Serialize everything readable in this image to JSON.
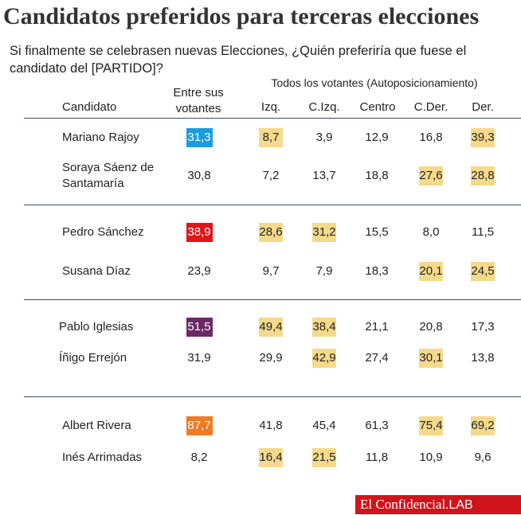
{
  "title": "Candidatos preferidos para terceras elecciones",
  "subtitle": "Si finalmente se celebrasen nuevas Elecciones, ¿Quién preferiría que fuese el candidato del [PARTIDO]?",
  "footer": {
    "brand": "El Confidencial.",
    "lab": "LAB"
  },
  "colors": {
    "highlight": "#f5d98b",
    "pp": "#1a9de0",
    "psoe": "#e0141a",
    "podemos": "#6b2a65",
    "cs": "#f07b22",
    "separator": "#3a4b5e"
  },
  "chart_data": {
    "type": "table",
    "group_header": "Todos los votantes (Autoposicionamiento)",
    "columns": [
      "Candidato",
      "Entre sus votantes",
      "Izq.",
      "C.Izq.",
      "Centro",
      "C.Der.",
      "Der."
    ],
    "rows": [
      {
        "candidate": "Mariano Rajoy",
        "party_color": "#1a9de0",
        "values": [
          31.3,
          8.7,
          3.9,
          12.9,
          16.8,
          39.3
        ],
        "display": [
          "31,3",
          "8,7",
          "3,9",
          "12,9",
          "16,8",
          "39,3"
        ],
        "highlighted": [
          false,
          true,
          false,
          false,
          false,
          true
        ]
      },
      {
        "candidate": "Soraya Sáenz de Santamaría",
        "party_color": "#1a9de0",
        "values": [
          30.8,
          7.2,
          13.7,
          18.8,
          27.6,
          28.8
        ],
        "display": [
          "30,8",
          "7,2",
          "13,7",
          "18,8",
          "27,6",
          "28,8"
        ],
        "highlighted": [
          false,
          false,
          false,
          false,
          true,
          true
        ]
      },
      {
        "candidate": "Pedro Sánchez",
        "party_color": "#e0141a",
        "values": [
          38.9,
          28.6,
          31.2,
          15.5,
          8.0,
          11.5
        ],
        "display": [
          "38,9",
          "28,6",
          "31,2",
          "15,5",
          "8,0",
          "11,5"
        ],
        "highlighted": [
          false,
          true,
          true,
          false,
          false,
          false
        ]
      },
      {
        "candidate": "Susana Díaz",
        "party_color": "#e0141a",
        "values": [
          23.9,
          9.7,
          7.9,
          18.3,
          20.1,
          24.5
        ],
        "display": [
          "23,9",
          "9,7",
          "7,9",
          "18,3",
          "20,1",
          "24,5"
        ],
        "highlighted": [
          false,
          false,
          false,
          false,
          true,
          true
        ]
      },
      {
        "candidate": "Pablo Iglesias",
        "party_color": "#6b2a65",
        "values": [
          51.5,
          49.4,
          38.4,
          21.1,
          20.8,
          17.3
        ],
        "display": [
          "51,5",
          "49,4",
          "38,4",
          "21,1",
          "20,8",
          "17,3"
        ],
        "highlighted": [
          false,
          true,
          true,
          false,
          false,
          false
        ]
      },
      {
        "candidate": "Íñigo Errejón",
        "party_color": "#6b2a65",
        "values": [
          31.9,
          29.9,
          42.9,
          27.4,
          30.1,
          13.8
        ],
        "display": [
          "31,9",
          "29,9",
          "42,9",
          "27,4",
          "30,1",
          "13,8"
        ],
        "highlighted": [
          false,
          false,
          true,
          false,
          true,
          false
        ]
      },
      {
        "candidate": "Albert Rivera",
        "party_color": "#f07b22",
        "values": [
          87.7,
          41.8,
          45.4,
          61.3,
          75.4,
          69.2
        ],
        "display": [
          "87,7",
          "41,8",
          "45,4",
          "61,3",
          "75,4",
          "69,2"
        ],
        "highlighted": [
          false,
          false,
          false,
          false,
          true,
          true
        ]
      },
      {
        "candidate": "Inés Arrimadas",
        "party_color": "#f07b22",
        "values": [
          8.2,
          16.4,
          21.5,
          11.8,
          10.9,
          9.6
        ],
        "display": [
          "8,2",
          "16,4",
          "21,5",
          "11,8",
          "10,9",
          "9,6"
        ],
        "highlighted": [
          false,
          true,
          true,
          false,
          false,
          false
        ]
      }
    ]
  }
}
